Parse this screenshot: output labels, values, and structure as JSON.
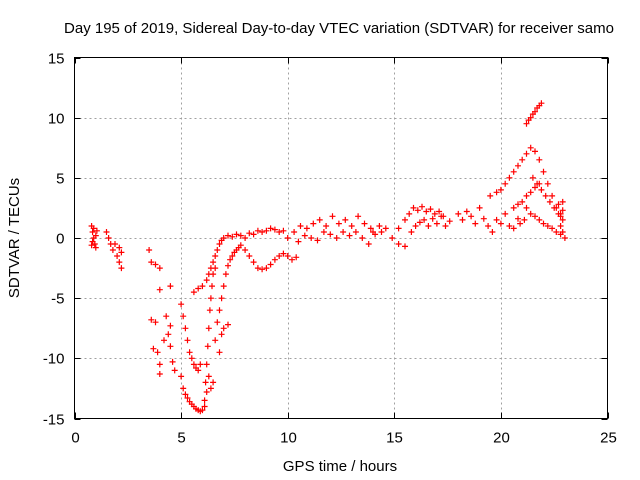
{
  "chart_data": {
    "type": "scatter",
    "title": "Day 195 of 2019, Sidereal Day-to-day VTEC variation (SDTVAR) for receiver samo",
    "xlabel": "GPS time / hours",
    "ylabel": "SDTVAR / TECUs",
    "xlim": [
      0,
      25
    ],
    "ylim": [
      -15,
      15
    ],
    "xticks": [
      0,
      5,
      10,
      15,
      20,
      25
    ],
    "yticks": [
      -15,
      -10,
      -5,
      0,
      5,
      10,
      15
    ],
    "xtick_labels": [
      "0",
      "5",
      "10",
      "15",
      "20",
      "25"
    ],
    "ytick_labels": [
      "-15",
      "-10",
      "-5",
      "0",
      "5",
      "10",
      "15"
    ],
    "grid": true,
    "marker": "+",
    "color": "#ff0000",
    "series": [
      {
        "name": "SDTVAR",
        "points": [
          [
            0.8,
            1.0
          ],
          [
            0.85,
            0.5
          ],
          [
            0.9,
            0.0
          ],
          [
            0.95,
            -0.5
          ],
          [
            1.0,
            -0.8
          ],
          [
            0.85,
            -0.3
          ],
          [
            0.9,
            0.8
          ],
          [
            1.0,
            0.2
          ],
          [
            1.05,
            0.6
          ],
          [
            0.8,
            -0.6
          ],
          [
            1.5,
            0.5
          ],
          [
            1.6,
            0.0
          ],
          [
            1.7,
            -0.5
          ],
          [
            1.8,
            -1.0
          ],
          [
            1.9,
            -0.5
          ],
          [
            2.0,
            -1.5
          ],
          [
            2.1,
            -2.0
          ],
          [
            2.2,
            -2.5
          ],
          [
            2.1,
            -0.8
          ],
          [
            2.2,
            -1.2
          ],
          [
            3.5,
            -1.0
          ],
          [
            3.6,
            -2.0
          ],
          [
            3.8,
            -2.2
          ],
          [
            4.0,
            -2.5
          ],
          [
            4.0,
            -4.3
          ],
          [
            4.5,
            -4.0
          ],
          [
            3.6,
            -6.8
          ],
          [
            3.8,
            -7.0
          ],
          [
            3.9,
            -9.5
          ],
          [
            3.7,
            -9.2
          ],
          [
            4.0,
            -10.5
          ],
          [
            4.0,
            -11.3
          ],
          [
            4.2,
            -8.5
          ],
          [
            4.3,
            -6.5
          ],
          [
            4.5,
            -7.3
          ],
          [
            4.4,
            -8.0
          ],
          [
            4.5,
            -9.0
          ],
          [
            4.6,
            -10.3
          ],
          [
            4.7,
            -11.0
          ],
          [
            5.0,
            -5.5
          ],
          [
            5.1,
            -6.5
          ],
          [
            5.2,
            -7.5
          ],
          [
            5.3,
            -8.5
          ],
          [
            5.4,
            -9.5
          ],
          [
            5.5,
            -10.0
          ],
          [
            5.6,
            -10.5
          ],
          [
            5.7,
            -10.8
          ],
          [
            5.8,
            -11.0
          ],
          [
            5.9,
            -10.5
          ],
          [
            5.0,
            -11.5
          ],
          [
            5.1,
            -12.5
          ],
          [
            5.2,
            -13.0
          ],
          [
            5.3,
            -13.3
          ],
          [
            5.4,
            -13.6
          ],
          [
            5.5,
            -13.8
          ],
          [
            5.6,
            -14.0
          ],
          [
            5.7,
            -14.2
          ],
          [
            5.8,
            -14.3
          ],
          [
            5.9,
            -14.4
          ],
          [
            6.0,
            -14.3
          ],
          [
            6.1,
            -14.0
          ],
          [
            5.6,
            -4.5
          ],
          [
            5.8,
            -4.2
          ],
          [
            6.0,
            -4.0
          ],
          [
            6.2,
            -3.5
          ],
          [
            6.3,
            -3.0
          ],
          [
            6.4,
            -2.5
          ],
          [
            6.5,
            -2.0
          ],
          [
            6.6,
            -1.5
          ],
          [
            6.7,
            -1.0
          ],
          [
            6.8,
            -0.5
          ],
          [
            6.9,
            -0.2
          ],
          [
            6.1,
            -13.5
          ],
          [
            6.15,
            -12.0
          ],
          [
            6.2,
            -10.5
          ],
          [
            6.25,
            -9.0
          ],
          [
            6.3,
            -7.5
          ],
          [
            6.35,
            -6.0
          ],
          [
            6.4,
            -5.0
          ],
          [
            6.45,
            -4.0
          ],
          [
            6.5,
            -3.0
          ],
          [
            6.6,
            -2.5
          ],
          [
            6.6,
            -8.5
          ],
          [
            6.7,
            -7.0
          ],
          [
            6.8,
            -6.0
          ],
          [
            6.9,
            -5.0
          ],
          [
            7.0,
            -4.0
          ],
          [
            7.1,
            -3.0
          ],
          [
            7.2,
            -2.3
          ],
          [
            7.3,
            -1.8
          ],
          [
            7.4,
            -1.5
          ],
          [
            7.5,
            -1.2
          ],
          [
            7.6,
            -1.0
          ],
          [
            7.7,
            -0.8
          ],
          [
            6.3,
            -11.5
          ],
          [
            6.4,
            -12.5
          ],
          [
            6.5,
            -12.0
          ],
          [
            6.2,
            -12.8
          ],
          [
            6.8,
            -9.5
          ],
          [
            6.9,
            -8.0
          ],
          [
            7.0,
            -7.5
          ],
          [
            7.2,
            -7.2
          ],
          [
            7.0,
            0.0
          ],
          [
            7.2,
            0.2
          ],
          [
            7.4,
            0.1
          ],
          [
            7.6,
            0.3
          ],
          [
            7.8,
            0.2
          ],
          [
            8.0,
            0.0
          ],
          [
            8.2,
            0.4
          ],
          [
            8.4,
            0.3
          ],
          [
            8.6,
            0.6
          ],
          [
            8.8,
            0.5
          ],
          [
            9.0,
            0.6
          ],
          [
            9.2,
            0.8
          ],
          [
            9.4,
            0.7
          ],
          [
            9.6,
            0.5
          ],
          [
            9.8,
            0.6
          ],
          [
            8.2,
            -1.5
          ],
          [
            8.4,
            -2.0
          ],
          [
            8.6,
            -2.5
          ],
          [
            8.8,
            -2.6
          ],
          [
            9.0,
            -2.5
          ],
          [
            9.2,
            -2.2
          ],
          [
            9.4,
            -1.8
          ],
          [
            9.6,
            -1.5
          ],
          [
            9.8,
            -1.3
          ],
          [
            10.0,
            -1.5
          ],
          [
            10.2,
            -1.8
          ],
          [
            10.4,
            -1.6
          ],
          [
            8.0,
            -1.0
          ],
          [
            7.8,
            -0.6
          ],
          [
            10.0,
            0.0
          ],
          [
            10.3,
            0.5
          ],
          [
            10.6,
            1.0
          ],
          [
            10.9,
            0.8
          ],
          [
            11.2,
            1.2
          ],
          [
            11.5,
            1.5
          ],
          [
            11.8,
            1.0
          ],
          [
            12.1,
            1.8
          ],
          [
            12.4,
            1.2
          ],
          [
            12.7,
            1.5
          ],
          [
            13.0,
            1.0
          ],
          [
            13.3,
            1.8
          ],
          [
            13.6,
            1.2
          ],
          [
            13.9,
            0.8
          ],
          [
            10.5,
            -0.3
          ],
          [
            10.8,
            0.2
          ],
          [
            11.1,
            0.0
          ],
          [
            11.4,
            -0.2
          ],
          [
            11.7,
            0.5
          ],
          [
            12.0,
            0.3
          ],
          [
            12.3,
            0.0
          ],
          [
            12.6,
            0.5
          ],
          [
            12.9,
            0.2
          ],
          [
            13.2,
            0.5
          ],
          [
            13.5,
            0.0
          ],
          [
            13.8,
            -0.5
          ],
          [
            14.1,
            0.3
          ],
          [
            14.4,
            0.5
          ],
          [
            14.0,
            0.5
          ],
          [
            14.3,
            1.0
          ],
          [
            14.6,
            0.8
          ],
          [
            14.9,
            0.0
          ],
          [
            15.2,
            -0.5
          ],
          [
            15.5,
            -0.7
          ],
          [
            15.2,
            0.8
          ],
          [
            15.5,
            1.5
          ],
          [
            15.7,
            2.0
          ],
          [
            15.9,
            2.5
          ],
          [
            16.1,
            2.3
          ],
          [
            16.3,
            2.6
          ],
          [
            16.5,
            2.2
          ],
          [
            16.7,
            2.4
          ],
          [
            16.9,
            2.0
          ],
          [
            17.1,
            2.2
          ],
          [
            17.3,
            1.8
          ],
          [
            15.8,
            0.5
          ],
          [
            16.0,
            1.0
          ],
          [
            16.2,
            1.3
          ],
          [
            16.4,
            1.5
          ],
          [
            16.6,
            1.0
          ],
          [
            16.8,
            1.6
          ],
          [
            17.0,
            1.2
          ],
          [
            17.2,
            1.8
          ],
          [
            17.4,
            1.0
          ],
          [
            17.6,
            1.4
          ],
          [
            18.0,
            2.0
          ],
          [
            18.2,
            1.5
          ],
          [
            18.4,
            2.2
          ],
          [
            18.6,
            1.8
          ],
          [
            18.8,
            1.2
          ],
          [
            19.0,
            2.5
          ],
          [
            19.2,
            1.6
          ],
          [
            19.4,
            1.0
          ],
          [
            19.6,
            0.5
          ],
          [
            19.8,
            1.5
          ],
          [
            20.0,
            1.2
          ],
          [
            20.2,
            2.0
          ],
          [
            20.4,
            1.0
          ],
          [
            20.6,
            0.8
          ],
          [
            20.8,
            1.6
          ],
          [
            19.5,
            3.5
          ],
          [
            19.8,
            3.8
          ],
          [
            20.0,
            4.0
          ],
          [
            20.2,
            4.5
          ],
          [
            20.4,
            5.0
          ],
          [
            20.6,
            5.5
          ],
          [
            20.8,
            6.0
          ],
          [
            21.0,
            6.5
          ],
          [
            21.2,
            7.0
          ],
          [
            21.4,
            7.5
          ],
          [
            21.6,
            7.2
          ],
          [
            21.8,
            6.5
          ],
          [
            22.0,
            5.5
          ],
          [
            22.2,
            4.5
          ],
          [
            22.4,
            3.5
          ],
          [
            22.6,
            2.5
          ],
          [
            22.8,
            2.0
          ],
          [
            22.9,
            1.5
          ],
          [
            21.5,
            5.0
          ],
          [
            21.7,
            4.5
          ],
          [
            21.9,
            4.0
          ],
          [
            22.1,
            3.5
          ],
          [
            22.3,
            3.0
          ],
          [
            22.5,
            2.5
          ],
          [
            22.7,
            2.0
          ],
          [
            22.8,
            1.0
          ],
          [
            22.9,
            0.5
          ],
          [
            23.0,
            0.0
          ],
          [
            22.8,
            0.3
          ],
          [
            22.6,
            0.5
          ],
          [
            22.4,
            0.8
          ],
          [
            22.2,
            1.0
          ],
          [
            22.0,
            1.2
          ],
          [
            21.8,
            1.5
          ],
          [
            21.6,
            1.8
          ],
          [
            21.4,
            2.0
          ],
          [
            21.2,
            2.5
          ],
          [
            21.0,
            3.0
          ],
          [
            21.2,
            3.5
          ],
          [
            21.4,
            3.8
          ],
          [
            21.6,
            4.2
          ],
          [
            21.8,
            4.5
          ],
          [
            20.8,
            2.8
          ],
          [
            20.6,
            2.5
          ],
          [
            20.9,
            1.2
          ],
          [
            21.1,
            1.5
          ],
          [
            21.2,
            9.5
          ],
          [
            21.3,
            9.8
          ],
          [
            21.4,
            10.0
          ],
          [
            21.5,
            10.3
          ],
          [
            21.6,
            10.5
          ],
          [
            21.7,
            10.8
          ],
          [
            21.8,
            11.0
          ],
          [
            21.9,
            11.2
          ],
          [
            22.7,
            2.8
          ],
          [
            22.9,
            3.0
          ],
          [
            22.8,
            1.8
          ],
          [
            22.9,
            2.3
          ]
        ]
      }
    ]
  }
}
